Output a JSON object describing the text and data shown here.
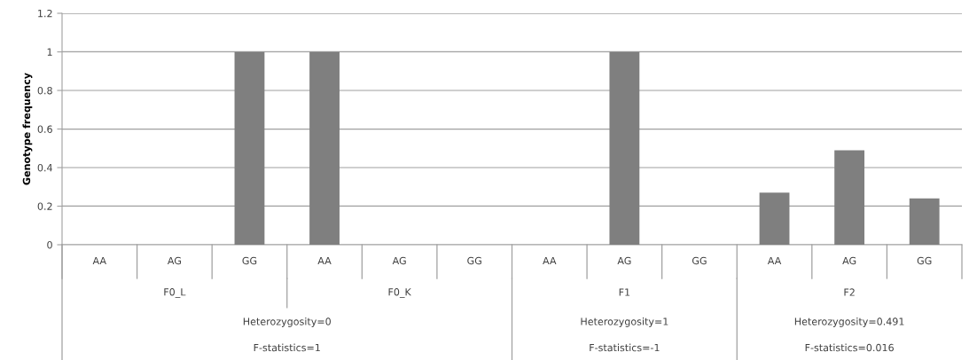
{
  "chart_data": {
    "type": "bar",
    "ylabel": "Genotype frequency",
    "categories": [
      "AA",
      "AG",
      "GG",
      "AA",
      "AG",
      "GG",
      "AA",
      "AG",
      "GG",
      "AA",
      "AG",
      "GG"
    ],
    "values": [
      0,
      0,
      1,
      1,
      0,
      0,
      0,
      1,
      0,
      0.27,
      0.49,
      0.24
    ],
    "color": "#7f7f7f",
    "ylim": [
      0,
      1.2
    ],
    "yticks": [
      0,
      0.2,
      0.4,
      0.6,
      0.8,
      1,
      1.2
    ],
    "grid": "y",
    "legend": false,
    "annotations": [
      "F0_L",
      "F0_K",
      "F1",
      "F2",
      "Heterozygosity=0",
      "Heterozygosity=1",
      "Heterozygosity=0.491",
      "F-statistics=1",
      "F-statistics=-1",
      "F-statistics=0.016"
    ]
  }
}
